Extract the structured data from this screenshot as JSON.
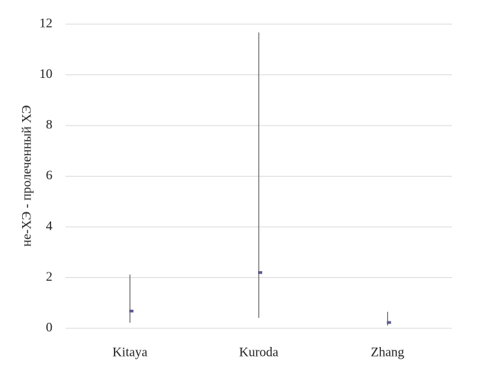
{
  "chart_data": {
    "type": "range",
    "y_label": "не-ХЭ - пролеченный ХЭ",
    "categories": [
      "Kitaya",
      "Kuroda",
      "Zhang"
    ],
    "values": [
      0.68,
      2.2,
      0.23
    ],
    "lows": [
      0.22,
      0.41,
      0.11
    ],
    "highs": [
      2.12,
      11.67,
      0.65
    ],
    "color": "#5b5b8f",
    "range_color": "#595959",
    "ylim": [
      0,
      12
    ],
    "yticks": [
      0,
      2,
      4,
      6,
      8,
      10,
      12
    ],
    "grid": true
  }
}
